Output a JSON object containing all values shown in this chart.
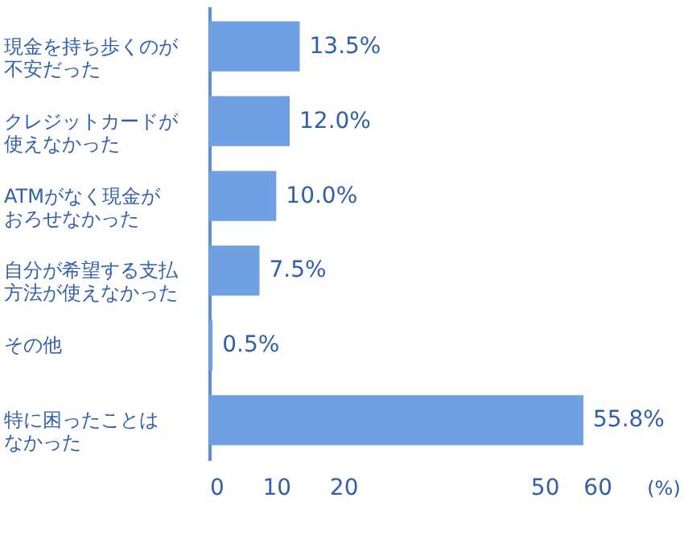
{
  "chart_data": {
    "type": "bar",
    "orientation": "horizontal",
    "categories": [
      "現金を持ち歩くのが不安だった",
      "クレジットカードが使えなかった",
      "ATMがなく現金がおろせなかった",
      "自分が希望する支払方法が使えなかった",
      "その他",
      "特に困ったことはなかった"
    ],
    "values": [
      13.5,
      12.0,
      10.0,
      7.5,
      0.5,
      55.8
    ],
    "value_labels": [
      "13.5%",
      "12.0%",
      "10.0%",
      "7.5%",
      "0.5%",
      "55.8%"
    ],
    "color": "#70a0e4",
    "xlabel": "(%)",
    "xlim": [
      0,
      60
    ],
    "xticks": [
      0,
      10,
      20,
      50,
      60
    ]
  }
}
